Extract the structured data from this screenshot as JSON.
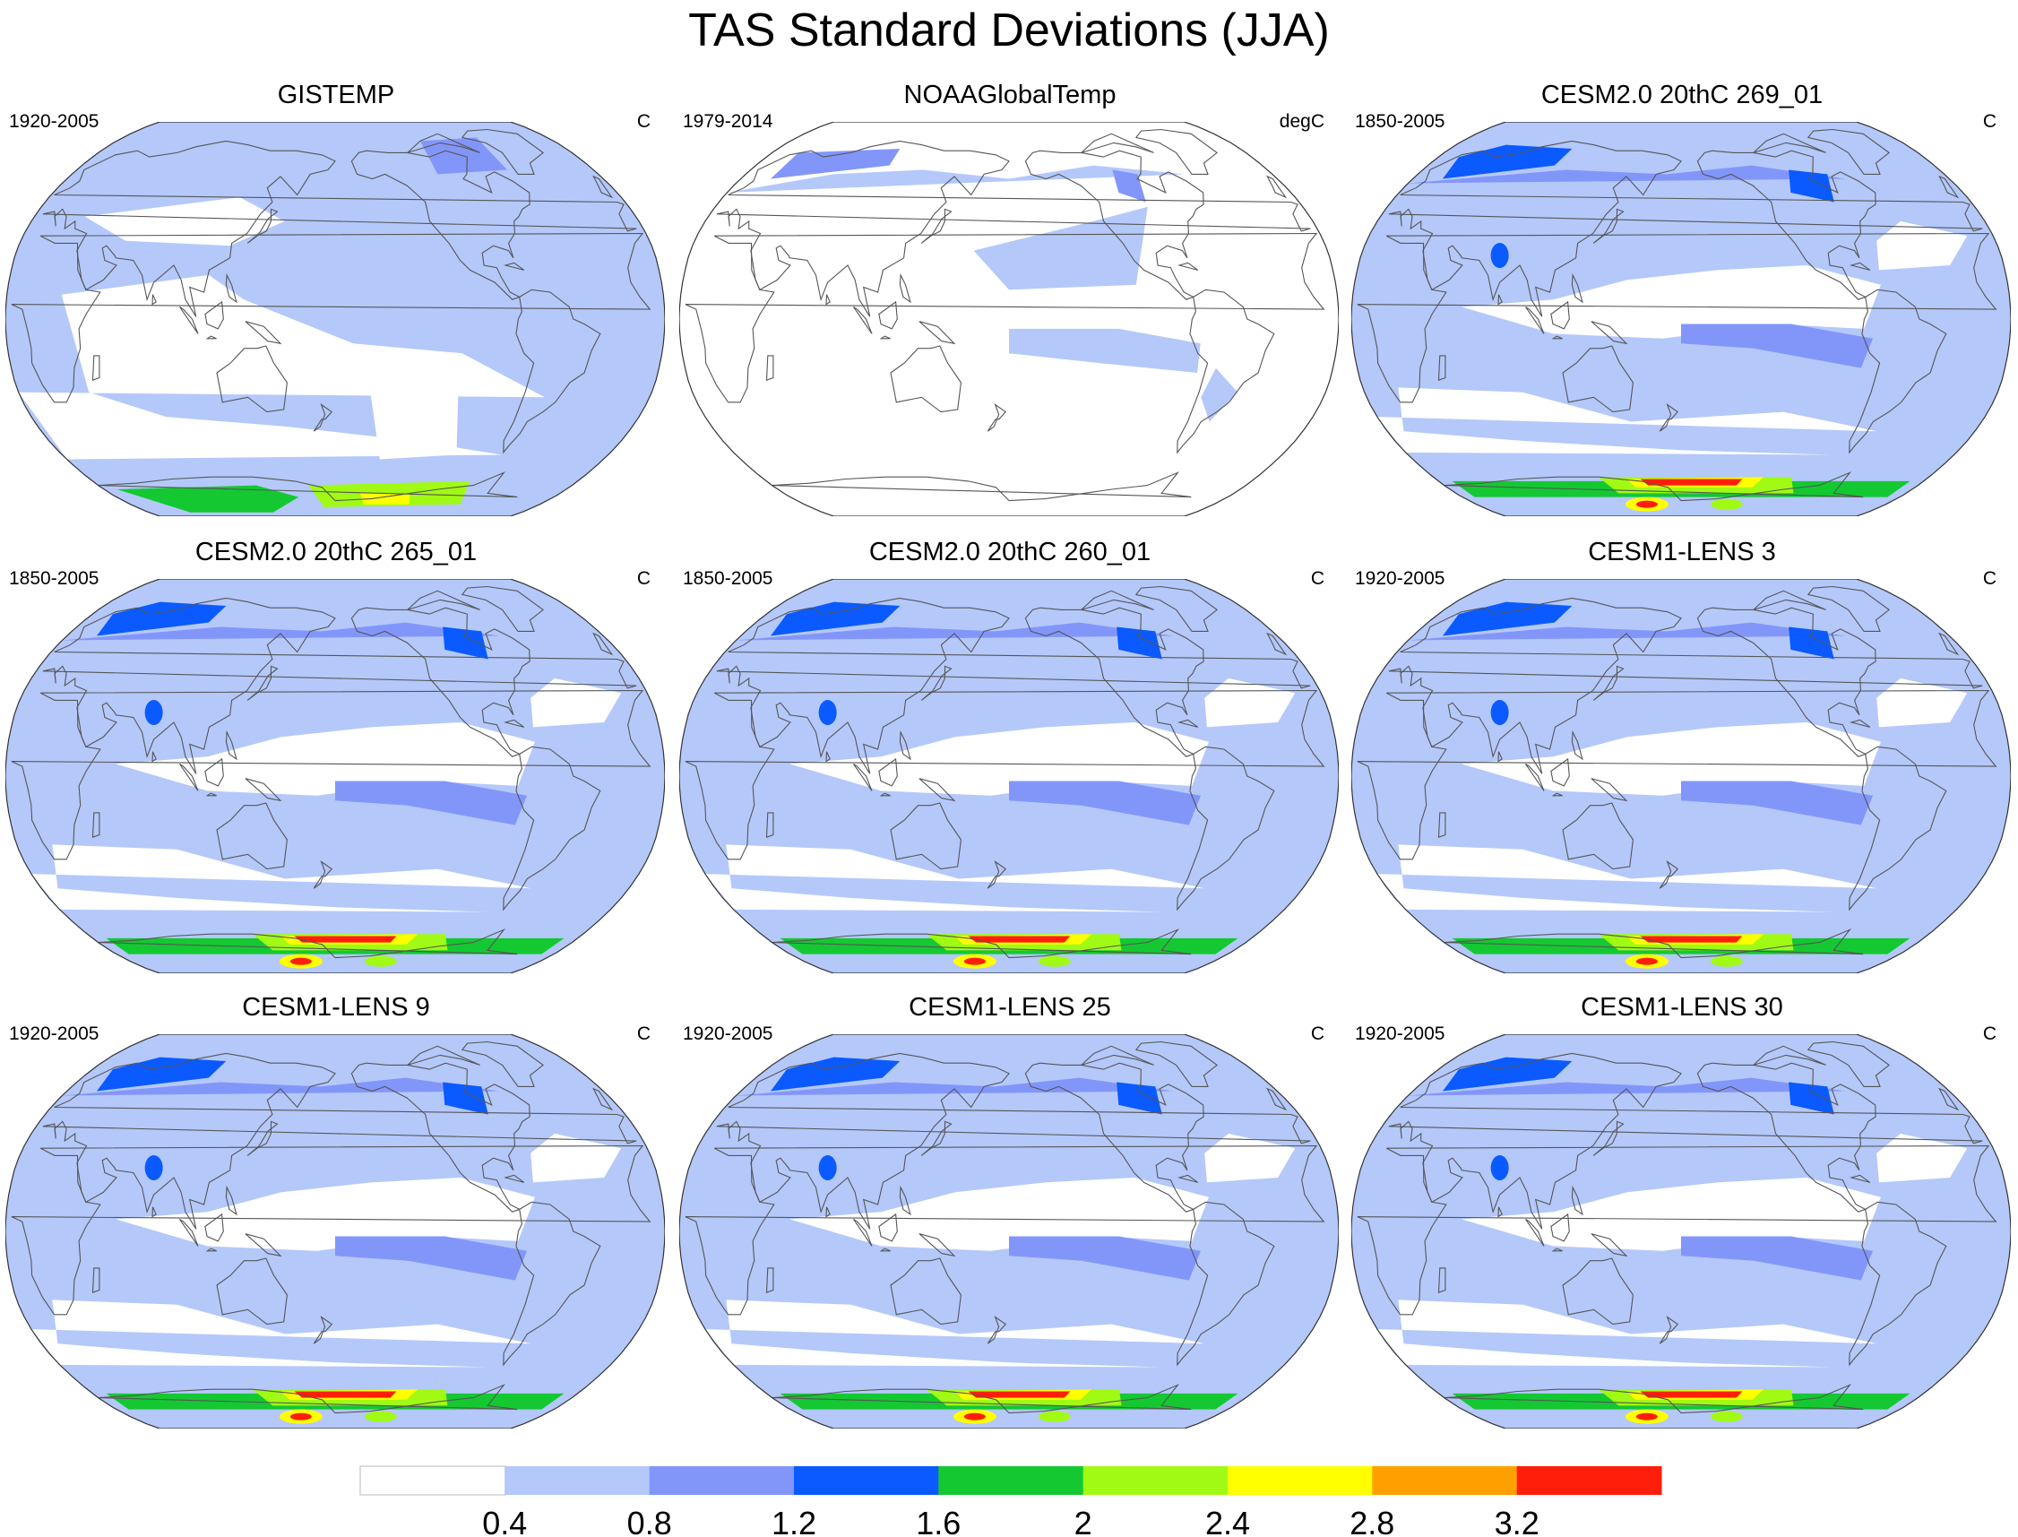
{
  "chart_data": {
    "type": "heatmap",
    "title": "TAS Standard Deviations (JJA)",
    "projection": "Robinson, Pacific-centered",
    "colorbar": {
      "levels": [
        "0.4",
        "0.8",
        "1.2",
        "1.6",
        "2",
        "2.4",
        "2.8",
        "3.2"
      ],
      "colors": [
        "#ffffff",
        "#b4c8fa",
        "#8296fa",
        "#0a5aff",
        "#14c832",
        "#a0fa14",
        "#ffff00",
        "#ffa000",
        "#ff1e0a"
      ]
    },
    "panels": [
      {
        "title": "GISTEMP",
        "years": "1920-2005",
        "units": "C",
        "pattern": "obs_gistemp"
      },
      {
        "title": "NOAAGlobalTemp",
        "years": "1979-2014",
        "units": "degC",
        "pattern": "obs_noaa"
      },
      {
        "title": "CESM2.0 20thC 269_01",
        "years": "1850-2005",
        "units": "C",
        "pattern": "model"
      },
      {
        "title": "CESM2.0 20thC 265_01",
        "years": "1850-2005",
        "units": "C",
        "pattern": "model"
      },
      {
        "title": "CESM2.0 20thC 260_01",
        "years": "1850-2005",
        "units": "C",
        "pattern": "model"
      },
      {
        "title": "CESM1-LENS 3",
        "years": "1920-2005",
        "units": "C",
        "pattern": "model"
      },
      {
        "title": "CESM1-LENS 9",
        "years": "1920-2005",
        "units": "C",
        "pattern": "model"
      },
      {
        "title": "CESM1-LENS 25",
        "years": "1920-2005",
        "units": "C",
        "pattern": "model"
      },
      {
        "title": "CESM1-LENS 30",
        "years": "1920-2005",
        "units": "C",
        "pattern": "model"
      }
    ]
  }
}
